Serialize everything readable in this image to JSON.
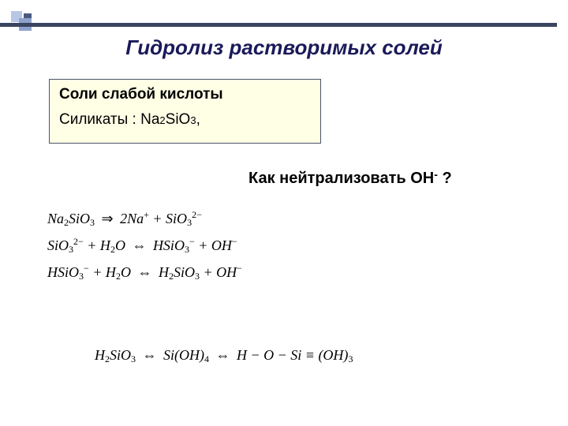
{
  "deco_colors": {
    "sq1": "#b8c6e6",
    "sq2": "#4a5a80",
    "sq3": "#8ea3cc",
    "bar": "#3a4560"
  },
  "title": "Гидролиз растворимых солей",
  "box": {
    "bg": "#ffffe6",
    "border": "#495368",
    "line1": "Соли слабой кислоты",
    "line2_prefix": "Силикаты : Na",
    "line2_sub1": "2",
    "line2_mid": "SiO",
    "line2_sub2": "3",
    "line2_suffix": ","
  },
  "question": {
    "prefix": "Как нейтрализовать OH",
    "sup": "-",
    "suffix": "  ?"
  },
  "equations": {
    "eq1": {
      "p1": "Na",
      "s1": "2",
      "p2": "SiO",
      "s2": "3",
      "arrow": "⇒",
      "p3": "2",
      "p4": "Na",
      "sup1": "+",
      "p5": " + SiO",
      "s3": "3",
      "sup2": "2−"
    },
    "eq2": {
      "p1": "SiO",
      "s1": "3",
      "sup1": "2−",
      "p2": " + H",
      "s2": "2",
      "p3": "O ",
      "arrow": "⇔",
      "p4": " HSiO",
      "s3": "3",
      "sup2": "−",
      "p5": " + OH",
      "sup3": "−"
    },
    "eq3": {
      "p1": "HSiO",
      "s1": "3",
      "sup1": "−",
      "p2": " + H",
      "s2": "2",
      "p3": "O ",
      "arrow": "⇔",
      "p4": " H",
      "s3": "2",
      "p5": "SiO",
      "s4": "3",
      "p6": " + OH",
      "sup2": "−"
    }
  },
  "bottom": {
    "p1": "H",
    "s1": "2",
    "p2": "SiO",
    "s2": "3",
    "arrow1": "⇔",
    "p3": " Si(OH)",
    "s3": "4",
    "arrow2": "⇔",
    "p4": " H − O − Si ≡ (OH)",
    "s4": "3"
  }
}
